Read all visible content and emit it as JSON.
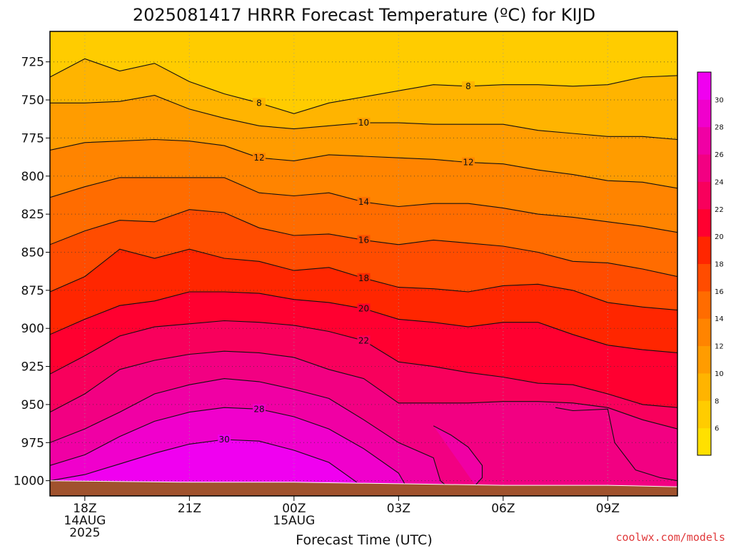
{
  "chart_data": {
    "type": "heatmap",
    "title": "2025081417 HRRR Forecast Temperature (ºC) for KIJD",
    "xlabel": "Forecast Time (UTC)",
    "ylabel": "",
    "y_axis": {
      "unit": "hPa",
      "range": [
        1010,
        705
      ],
      "inverted": true,
      "ticks": [
        "725",
        "750",
        "775",
        "800",
        "825",
        "850",
        "875",
        "900",
        "925",
        "950",
        "975",
        "1000"
      ]
    },
    "x_axis": {
      "range_hours": [
        -1,
        17
      ],
      "ticks": [
        {
          "hour": 0,
          "lines": [
            "18Z",
            "14AUG",
            "2025"
          ]
        },
        {
          "hour": 3,
          "lines": [
            "21Z"
          ]
        },
        {
          "hour": 6,
          "lines": [
            "00Z",
            "15AUG"
          ]
        },
        {
          "hour": 9,
          "lines": [
            "03Z"
          ]
        },
        {
          "hour": 12,
          "lines": [
            "06Z"
          ]
        },
        {
          "hour": 15,
          "lines": [
            "09Z"
          ]
        }
      ]
    },
    "grid": true,
    "colorbar": {
      "placement": "right",
      "labels": [
        "6",
        "8",
        "10",
        "12",
        "14",
        "16",
        "18",
        "20",
        "22",
        "24",
        "26",
        "28",
        "30"
      ],
      "colors": [
        "#ffe000",
        "#ffcc00",
        "#ffb400",
        "#ff9c00",
        "#ff8400",
        "#ff6c00",
        "#ff4c00",
        "#ff2600",
        "#ff0030",
        "#f8005c",
        "#f20082",
        "#f000a4",
        "#f000cc",
        "#f000f0"
      ]
    },
    "ground_color": "#a0522d",
    "contours": [
      {
        "level": 8,
        "labels": [
          "8",
          "8"
        ],
        "points": [
          [
            -1,
            735
          ],
          [
            0,
            723
          ],
          [
            1,
            731
          ],
          [
            2,
            726
          ],
          [
            3,
            738
          ],
          [
            4,
            746
          ],
          [
            5,
            752
          ],
          [
            6,
            759
          ],
          [
            7,
            752
          ],
          [
            8,
            748
          ],
          [
            9,
            744
          ],
          [
            10,
            740
          ],
          [
            11,
            741
          ],
          [
            12,
            740
          ],
          [
            13,
            740
          ],
          [
            14,
            741
          ],
          [
            15,
            740
          ],
          [
            16,
            735
          ],
          [
            17,
            734
          ]
        ]
      },
      {
        "level": 10,
        "labels": [
          "10"
        ],
        "points": [
          [
            -1,
            752
          ],
          [
            0,
            752
          ],
          [
            1,
            751
          ],
          [
            2,
            747
          ],
          [
            3,
            756
          ],
          [
            4,
            762
          ],
          [
            5,
            767
          ],
          [
            6,
            769
          ],
          [
            7,
            767
          ],
          [
            8,
            765
          ],
          [
            9,
            765
          ],
          [
            10,
            766
          ],
          [
            11,
            766
          ],
          [
            12,
            766
          ],
          [
            13,
            770
          ],
          [
            14,
            772
          ],
          [
            15,
            774
          ],
          [
            16,
            774
          ],
          [
            17,
            776
          ]
        ]
      },
      {
        "level": 12,
        "labels": [
          "12",
          "12"
        ],
        "points": [
          [
            -1,
            783
          ],
          [
            0,
            778
          ],
          [
            1,
            777
          ],
          [
            2,
            776
          ],
          [
            3,
            777
          ],
          [
            4,
            780
          ],
          [
            5,
            788
          ],
          [
            6,
            790
          ],
          [
            7,
            786
          ],
          [
            8,
            787
          ],
          [
            9,
            788
          ],
          [
            10,
            789
          ],
          [
            11,
            791
          ],
          [
            12,
            792
          ],
          [
            13,
            796
          ],
          [
            14,
            799
          ],
          [
            15,
            803
          ],
          [
            16,
            804
          ],
          [
            17,
            808
          ]
        ]
      },
      {
        "level": 14,
        "labels": [
          "14"
        ],
        "points": [
          [
            -1,
            814
          ],
          [
            0,
            807
          ],
          [
            1,
            801
          ],
          [
            2,
            801
          ],
          [
            3,
            801
          ],
          [
            4,
            801
          ],
          [
            5,
            811
          ],
          [
            6,
            813
          ],
          [
            7,
            811
          ],
          [
            8,
            817
          ],
          [
            9,
            820
          ],
          [
            10,
            818
          ],
          [
            11,
            818
          ],
          [
            12,
            821
          ],
          [
            13,
            825
          ],
          [
            14,
            827
          ],
          [
            15,
            830
          ],
          [
            16,
            833
          ],
          [
            17,
            837
          ]
        ]
      },
      {
        "level": 16,
        "labels": [
          "16"
        ],
        "points": [
          [
            -1,
            845
          ],
          [
            0,
            836
          ],
          [
            1,
            829
          ],
          [
            2,
            830
          ],
          [
            3,
            822
          ],
          [
            4,
            824
          ],
          [
            5,
            834
          ],
          [
            6,
            839
          ],
          [
            7,
            838
          ],
          [
            8,
            842
          ],
          [
            9,
            845
          ],
          [
            10,
            842
          ],
          [
            11,
            844
          ],
          [
            12,
            846
          ],
          [
            13,
            850
          ],
          [
            14,
            856
          ],
          [
            15,
            857
          ],
          [
            16,
            861
          ],
          [
            17,
            866
          ]
        ]
      },
      {
        "level": 18,
        "labels": [
          "18"
        ],
        "points": [
          [
            -1,
            876
          ],
          [
            0,
            866
          ],
          [
            1,
            848
          ],
          [
            2,
            854
          ],
          [
            3,
            848
          ],
          [
            4,
            854
          ],
          [
            5,
            856
          ],
          [
            6,
            862
          ],
          [
            7,
            860
          ],
          [
            8,
            867
          ],
          [
            9,
            873
          ],
          [
            10,
            874
          ],
          [
            11,
            876
          ],
          [
            12,
            872
          ],
          [
            13,
            871
          ],
          [
            14,
            875
          ],
          [
            15,
            883
          ],
          [
            16,
            886
          ],
          [
            17,
            888
          ]
        ]
      },
      {
        "level": 20,
        "labels": [
          "20"
        ],
        "points": [
          [
            -1,
            904
          ],
          [
            0,
            894
          ],
          [
            1,
            885
          ],
          [
            2,
            882
          ],
          [
            3,
            876
          ],
          [
            4,
            876
          ],
          [
            5,
            877
          ],
          [
            6,
            881
          ],
          [
            7,
            883
          ],
          [
            8,
            887
          ],
          [
            9,
            894
          ],
          [
            10,
            896
          ],
          [
            11,
            899
          ],
          [
            12,
            896
          ],
          [
            13,
            896
          ],
          [
            14,
            904
          ],
          [
            15,
            911
          ],
          [
            16,
            914
          ],
          [
            17,
            916
          ]
        ]
      },
      {
        "level": 22,
        "labels": [
          "22"
        ],
        "points": [
          [
            -1,
            930
          ],
          [
            0,
            918
          ],
          [
            1,
            905
          ],
          [
            2,
            899
          ],
          [
            3,
            897
          ],
          [
            4,
            895
          ],
          [
            5,
            896
          ],
          [
            6,
            898
          ],
          [
            7,
            902
          ],
          [
            8,
            908
          ],
          [
            9,
            922
          ],
          [
            10,
            925
          ],
          [
            11,
            929
          ],
          [
            12,
            932
          ],
          [
            13,
            936
          ],
          [
            14,
            937
          ],
          [
            15,
            943
          ],
          [
            16,
            950
          ],
          [
            17,
            952
          ]
        ]
      },
      {
        "level": 24,
        "labels": [],
        "points": [
          [
            -1,
            955
          ],
          [
            0,
            943
          ],
          [
            1,
            927
          ],
          [
            2,
            921
          ],
          [
            3,
            917
          ],
          [
            4,
            915
          ],
          [
            5,
            916
          ],
          [
            6,
            919
          ],
          [
            7,
            927
          ],
          [
            8,
            933
          ],
          [
            9,
            949
          ],
          [
            10,
            949
          ],
          [
            11,
            949
          ],
          [
            12,
            948
          ],
          [
            13,
            948
          ],
          [
            14,
            949
          ],
          [
            15,
            952
          ],
          [
            16,
            960
          ],
          [
            17,
            966
          ]
        ]
      },
      {
        "level": 26,
        "labels": [],
        "points": [
          [
            -1,
            975
          ],
          [
            0,
            966
          ],
          [
            1,
            955
          ],
          [
            2,
            943
          ],
          [
            3,
            937
          ],
          [
            4,
            933
          ],
          [
            5,
            935
          ],
          [
            6,
            940
          ],
          [
            7,
            946
          ],
          [
            8,
            960
          ],
          [
            9,
            975
          ],
          [
            10,
            985
          ],
          [
            10.2,
            1000
          ],
          [
            10.4,
            1004
          ]
        ]
      },
      {
        "level": 28,
        "labels": [
          "28"
        ],
        "points": [
          [
            -1,
            990
          ],
          [
            0,
            983
          ],
          [
            1,
            971
          ],
          [
            2,
            961
          ],
          [
            3,
            955
          ],
          [
            4,
            952
          ],
          [
            5,
            953
          ],
          [
            6,
            958
          ],
          [
            7,
            966
          ],
          [
            8,
            979
          ],
          [
            9,
            995
          ],
          [
            9.2,
            1003
          ]
        ]
      },
      {
        "level": 30,
        "labels": [
          "30"
        ],
        "points": [
          [
            -1,
            1000
          ],
          [
            0,
            996
          ],
          [
            1,
            989
          ],
          [
            2,
            982
          ],
          [
            3,
            976
          ],
          [
            4,
            973
          ],
          [
            5,
            974
          ],
          [
            6,
            980
          ],
          [
            7,
            988
          ],
          [
            7.8,
            1001
          ]
        ]
      },
      {
        "level": 26,
        "labels": [],
        "points": [
          [
            11.2,
            1003
          ],
          [
            11.4,
            998
          ],
          [
            11.4,
            990
          ],
          [
            11.0,
            978
          ],
          [
            10.5,
            970
          ],
          [
            10.0,
            964
          ]
        ]
      },
      {
        "level": 24,
        "labels": [],
        "points": [
          [
            13.5,
            952
          ],
          [
            14,
            954
          ],
          [
            15,
            953
          ],
          [
            15.2,
            975
          ],
          [
            15.8,
            993
          ],
          [
            16.5,
            998
          ],
          [
            17,
            1000
          ]
        ]
      }
    ],
    "ground_surface_hPa": [
      [
        -1,
        1000
      ],
      [
        3,
        1001
      ],
      [
        6,
        1001
      ],
      [
        9,
        1002
      ],
      [
        12,
        1003
      ],
      [
        15,
        1003
      ],
      [
        17,
        1004
      ]
    ]
  },
  "credit": "coolwx.com/models"
}
